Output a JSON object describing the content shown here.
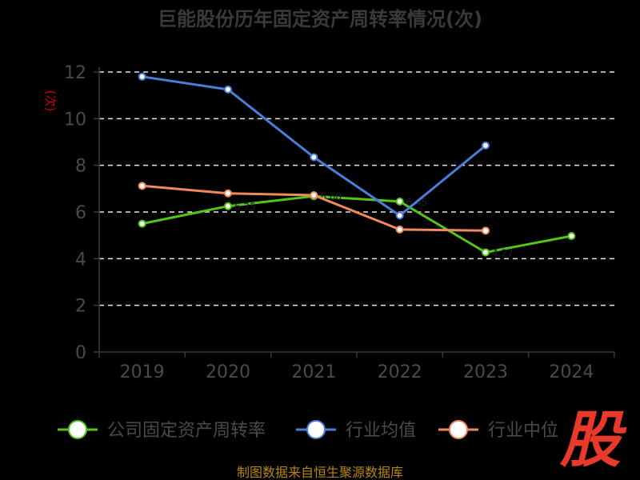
{
  "chart_data": {
    "type": "line",
    "title": "巨能股份历年固定资产周转率情况(次)",
    "unit_label": "(次)",
    "categories": [
      "2019",
      "2020",
      "2021",
      "2022",
      "2023",
      "2024"
    ],
    "ylim": [
      0,
      12
    ],
    "yticks": [
      0,
      2,
      4,
      6,
      8,
      10,
      12
    ],
    "grid": true,
    "legend_position": "bottom",
    "series": [
      {
        "name": "公司固定资产周转率",
        "color": "#52c41a",
        "values": [
          5.5,
          6.25,
          6.68,
          6.45,
          4.27,
          4.97
        ],
        "labels": [
          "",
          "6.25",
          "6.68",
          "6.45",
          "4.27",
          ""
        ]
      },
      {
        "name": "行业均值",
        "color": "#4a7fd8",
        "values": [
          11.8,
          11.25,
          8.35,
          5.85,
          8.85,
          null
        ]
      },
      {
        "name": "行业中位",
        "color": "#f08a5d",
        "values": [
          7.12,
          6.8,
          6.72,
          5.25,
          5.2,
          null
        ]
      }
    ]
  },
  "source": "制图数据来自恒生聚源数据库",
  "watermark": "股"
}
